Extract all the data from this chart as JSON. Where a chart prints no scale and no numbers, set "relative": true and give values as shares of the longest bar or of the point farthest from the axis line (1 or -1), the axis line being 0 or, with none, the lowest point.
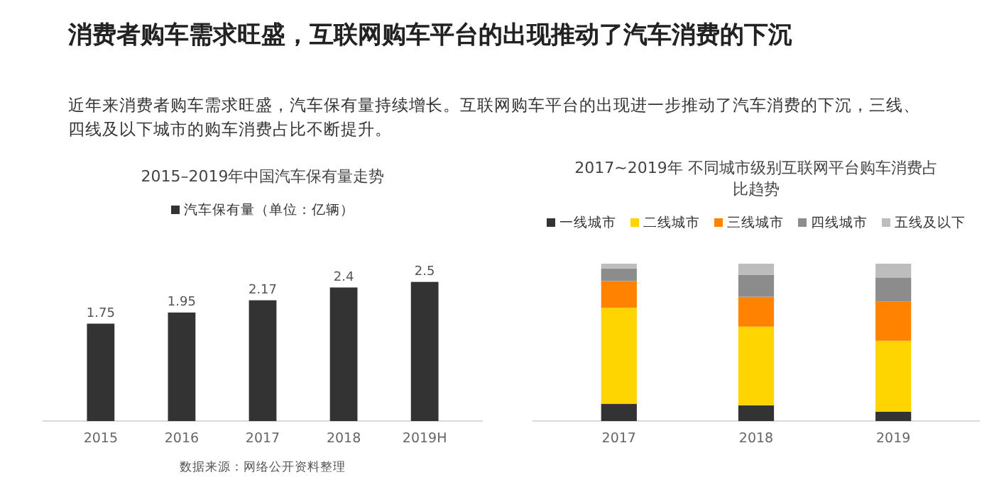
{
  "chart_data": [
    {
      "type": "other",
      "title": "消费者购车需求旺盛，互联网购车平台的出现推动了汽车消费的下沉",
      "subtitle": "近年来消费者购车需求旺盛，汽车保有量持续增长。互联网购车平台的出现进一步推动了汽车消费的下沉，三线、四线及以下城市的购车消费占比不断提升。"
    },
    {
      "type": "bar",
      "title": "2015–2019年中国汽车保有量走势",
      "categories": [
        "2015",
        "2016",
        "2017",
        "2018",
        "2019H"
      ],
      "series": [
        {
          "name": "汽车保有量（单位：亿辆）",
          "color": "#333333",
          "values": [
            1.75,
            1.95,
            2.17,
            2.4,
            2.5
          ]
        }
      ],
      "data_labels": true,
      "legend": "top",
      "annotations": [
        "数据来源：网络公开资料整理"
      ]
    },
    {
      "type": "bar",
      "title": "2017~2019年 不同城市级别互联网平台购车消费占比趋势",
      "categories": [
        "2017",
        "2018",
        "2019"
      ],
      "stacked": true,
      "relative": true,
      "legend": "top",
      "series": [
        {
          "name": "一线城市",
          "color": "#333333",
          "values": [
            0.11,
            0.1,
            0.06
          ]
        },
        {
          "name": "二线城市",
          "color": "#ffd500",
          "values": [
            0.61,
            0.5,
            0.45
          ]
        },
        {
          "name": "三线城市",
          "color": "#ff8200",
          "values": [
            0.17,
            0.19,
            0.25
          ]
        },
        {
          "name": "四线城市",
          "color": "#8c8c8c",
          "values": [
            0.08,
            0.14,
            0.15
          ]
        },
        {
          "name": "五线及以下",
          "color": "#bdbdbd",
          "values": [
            0.03,
            0.07,
            0.09
          ]
        }
      ]
    }
  ]
}
